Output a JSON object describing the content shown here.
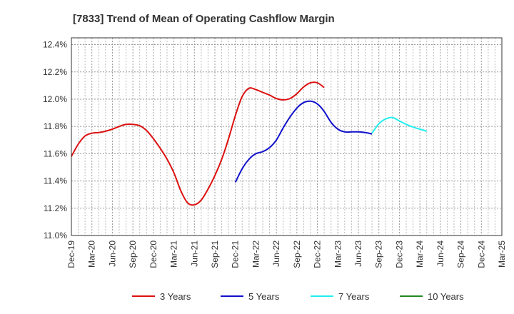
{
  "chart_data": {
    "type": "line",
    "title": "[7833]  Trend of Mean of Operating Cashflow Margin",
    "xlabel": "",
    "ylabel": "",
    "x_tick_labels": [
      "Dec-19",
      "Mar-20",
      "Jun-20",
      "Sep-20",
      "Dec-20",
      "Mar-21",
      "Jun-21",
      "Sep-21",
      "Dec-21",
      "Mar-22",
      "Jun-22",
      "Sep-22",
      "Dec-22",
      "Mar-23",
      "Jun-23",
      "Sep-23",
      "Dec-23",
      "Mar-24",
      "Jun-24",
      "Sep-24",
      "Dec-24",
      "Mar-25"
    ],
    "y_tick_labels": [
      "11.0%",
      "11.2%",
      "11.4%",
      "11.6%",
      "11.8%",
      "12.0%",
      "12.2%",
      "12.4%"
    ],
    "ylim": [
      11.0,
      12.45
    ],
    "grid": true,
    "legend_position": "bottom",
    "series": [
      {
        "name": "3 Years",
        "color": "#dd1111",
        "start_index": 0,
        "values": [
          11.58,
          11.67,
          11.73,
          11.75,
          11.755,
          11.765,
          11.78,
          11.8,
          11.815,
          11.815,
          11.805,
          11.77,
          11.71,
          11.64,
          11.56,
          11.46,
          11.33,
          11.24,
          11.225,
          11.26,
          11.34,
          11.44,
          11.56,
          11.71,
          11.88,
          12.02,
          12.08,
          12.07,
          12.05,
          12.03,
          12.005,
          11.995,
          12.005,
          12.04,
          12.09,
          12.12,
          12.12,
          12.085
        ]
      },
      {
        "name": "5 Years",
        "color": "#1111cc",
        "start_index": 24,
        "values": [
          11.39,
          11.49,
          11.56,
          11.6,
          11.615,
          11.645,
          11.7,
          11.79,
          11.87,
          11.935,
          11.975,
          11.985,
          11.965,
          11.91,
          11.83,
          11.78,
          11.76,
          11.76,
          11.76,
          11.755,
          11.745
        ]
      },
      {
        "name": "7 Years",
        "color": "#22eeee",
        "start_index": 44,
        "values": [
          11.75,
          11.82,
          11.855,
          11.865,
          11.84,
          11.815,
          11.795,
          11.78,
          11.765
        ]
      },
      {
        "name": "10 Years",
        "color": "#228822",
        "start_index": 0,
        "values": []
      }
    ]
  }
}
